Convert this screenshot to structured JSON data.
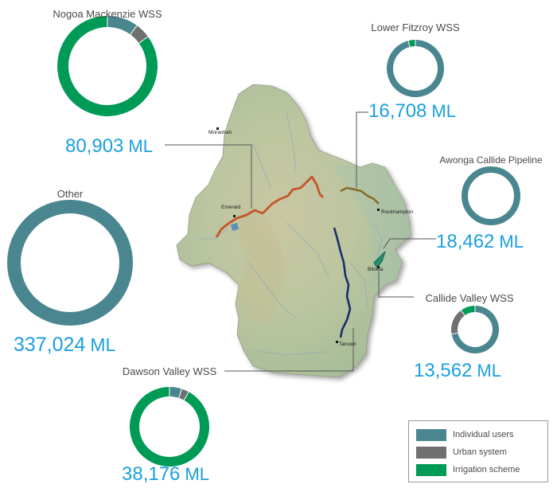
{
  "colors": {
    "individual": "#4a8690",
    "urban": "#707070",
    "irrigation": "#009a57",
    "value_text": "#1a9fe0",
    "label_text": "#4a4a4a",
    "leader": "#555555"
  },
  "map": {
    "towns": [
      "Moranbah",
      "Emerald",
      "Rockhampton",
      "Biloela",
      "Taroom"
    ]
  },
  "legend": {
    "items": [
      {
        "key": "individual",
        "label": "Individual users"
      },
      {
        "key": "urban",
        "label": "Urban system"
      },
      {
        "key": "irrigation",
        "label": "Irrigation scheme"
      }
    ]
  },
  "chart_data": {
    "type": "donut",
    "categories": [
      "Individual users",
      "Urban system",
      "Irrigation scheme"
    ],
    "series": [
      {
        "name": "Nogoa Mackenzie WSS",
        "value_num": "80,903",
        "value_unit": "ML",
        "shares": [
          0.1,
          0.05,
          0.85
        ]
      },
      {
        "name": "Lower Fitzroy WSS",
        "value_num": "16,708",
        "value_unit": "ML",
        "shares": [
          0.96,
          0.0,
          0.04
        ]
      },
      {
        "name": "Awonga Callide Pipeline",
        "value_num": "18,462",
        "value_unit": "ML",
        "shares": [
          1.0,
          0.0,
          0.0
        ]
      },
      {
        "name": "Other",
        "value_num": "337,024",
        "value_unit": "ML",
        "shares": [
          1.0,
          0.0,
          0.0
        ]
      },
      {
        "name": "Callide Valley WSS",
        "value_num": "13,562",
        "value_unit": "ML",
        "shares": [
          0.72,
          0.18,
          0.1
        ]
      },
      {
        "name": "Dawson Valley WSS",
        "value_num": "38,176",
        "value_unit": "ML",
        "shares": [
          0.05,
          0.03,
          0.92
        ]
      }
    ]
  }
}
